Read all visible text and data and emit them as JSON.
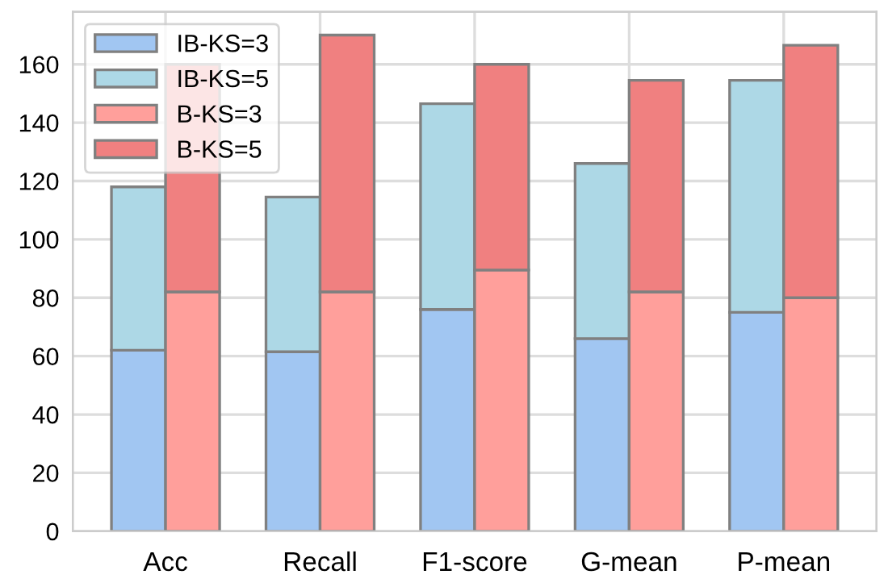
{
  "chart_data": [
    {
      "type": "bar",
      "stacked": true,
      "categories": [
        "Acc",
        "Recall",
        "F1-score",
        "G-mean",
        "P-mean"
      ],
      "series": [
        {
          "name": "IB-KS=3",
          "color": "#a1c6f2",
          "values": [
            62,
            61.5,
            76,
            66,
            75
          ]
        },
        {
          "name": "IB-KS=5",
          "color": "#add8e6",
          "values": [
            56,
            53,
            70.5,
            60,
            79.5
          ]
        }
      ],
      "ylim": [
        0,
        178
      ],
      "yticks": [
        0,
        20,
        40,
        60,
        80,
        100,
        120,
        140,
        160
      ],
      "grid": true,
      "legend": "top left"
    },
    {
      "type": "bar",
      "stacked": true,
      "categories": [
        null,
        null,
        null,
        null,
        null
      ],
      "series": [
        {
          "name": "B-KS=3",
          "color": "#ff9f9b",
          "values": [
            82,
            82,
            89.5,
            82,
            80
          ]
        },
        {
          "name": "B-KS=5",
          "color": "#f08080",
          "values": [
            78,
            88,
            70.5,
            72.5,
            86.5
          ]
        }
      ],
      "ylim": [
        0,
        178
      ],
      "yticks": [
        0,
        20,
        40,
        60,
        80,
        100,
        120,
        140,
        160
      ],
      "tick_labels": false,
      "legend": "top left"
    }
  ]
}
